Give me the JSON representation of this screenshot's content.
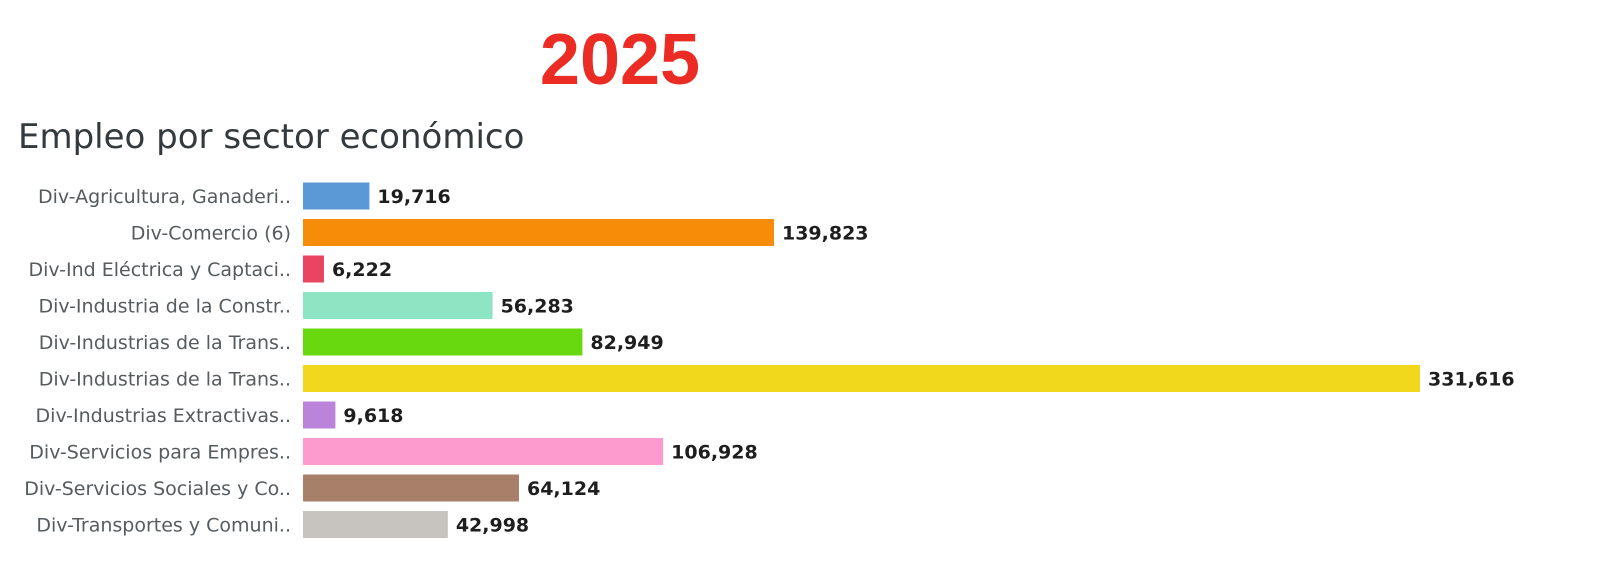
{
  "header": {
    "year": "2025"
  },
  "chart_data": {
    "type": "bar",
    "orientation": "horizontal",
    "title": "Empleo por sector económico",
    "xlabel": "",
    "ylabel": "",
    "xlim": [
      0,
      331616
    ],
    "grid": false,
    "legend": "none",
    "categories": [
      "Div-Agricultura, Ganaderi..",
      "Div-Comercio (6)",
      "Div-Ind Eléctrica y Captaci..",
      "Div-Industria de la Constr..",
      "Div-Industrias de la Trans..",
      "Div-Industrias de la Trans..",
      "Div-Industrias Extractivas..",
      "Div-Servicios para Empres..",
      "Div-Servicios Sociales y Co..",
      "Div-Transportes y Comuni.."
    ],
    "values": [
      19716,
      139823,
      6222,
      56283,
      82949,
      331616,
      9618,
      106928,
      64124,
      42998
    ],
    "value_labels": [
      "19,716",
      "139,823",
      "6,222",
      "56,283",
      "82,949",
      "331,616",
      "9,618",
      "106,928",
      "64,124",
      "42,998"
    ],
    "colors": [
      "#5b98d6",
      "#f78c09",
      "#e94560",
      "#8de5c4",
      "#68d90f",
      "#f2d81d",
      "#bb83d9",
      "#fd9bcf",
      "#a8806a",
      "#c7c4bf"
    ]
  }
}
